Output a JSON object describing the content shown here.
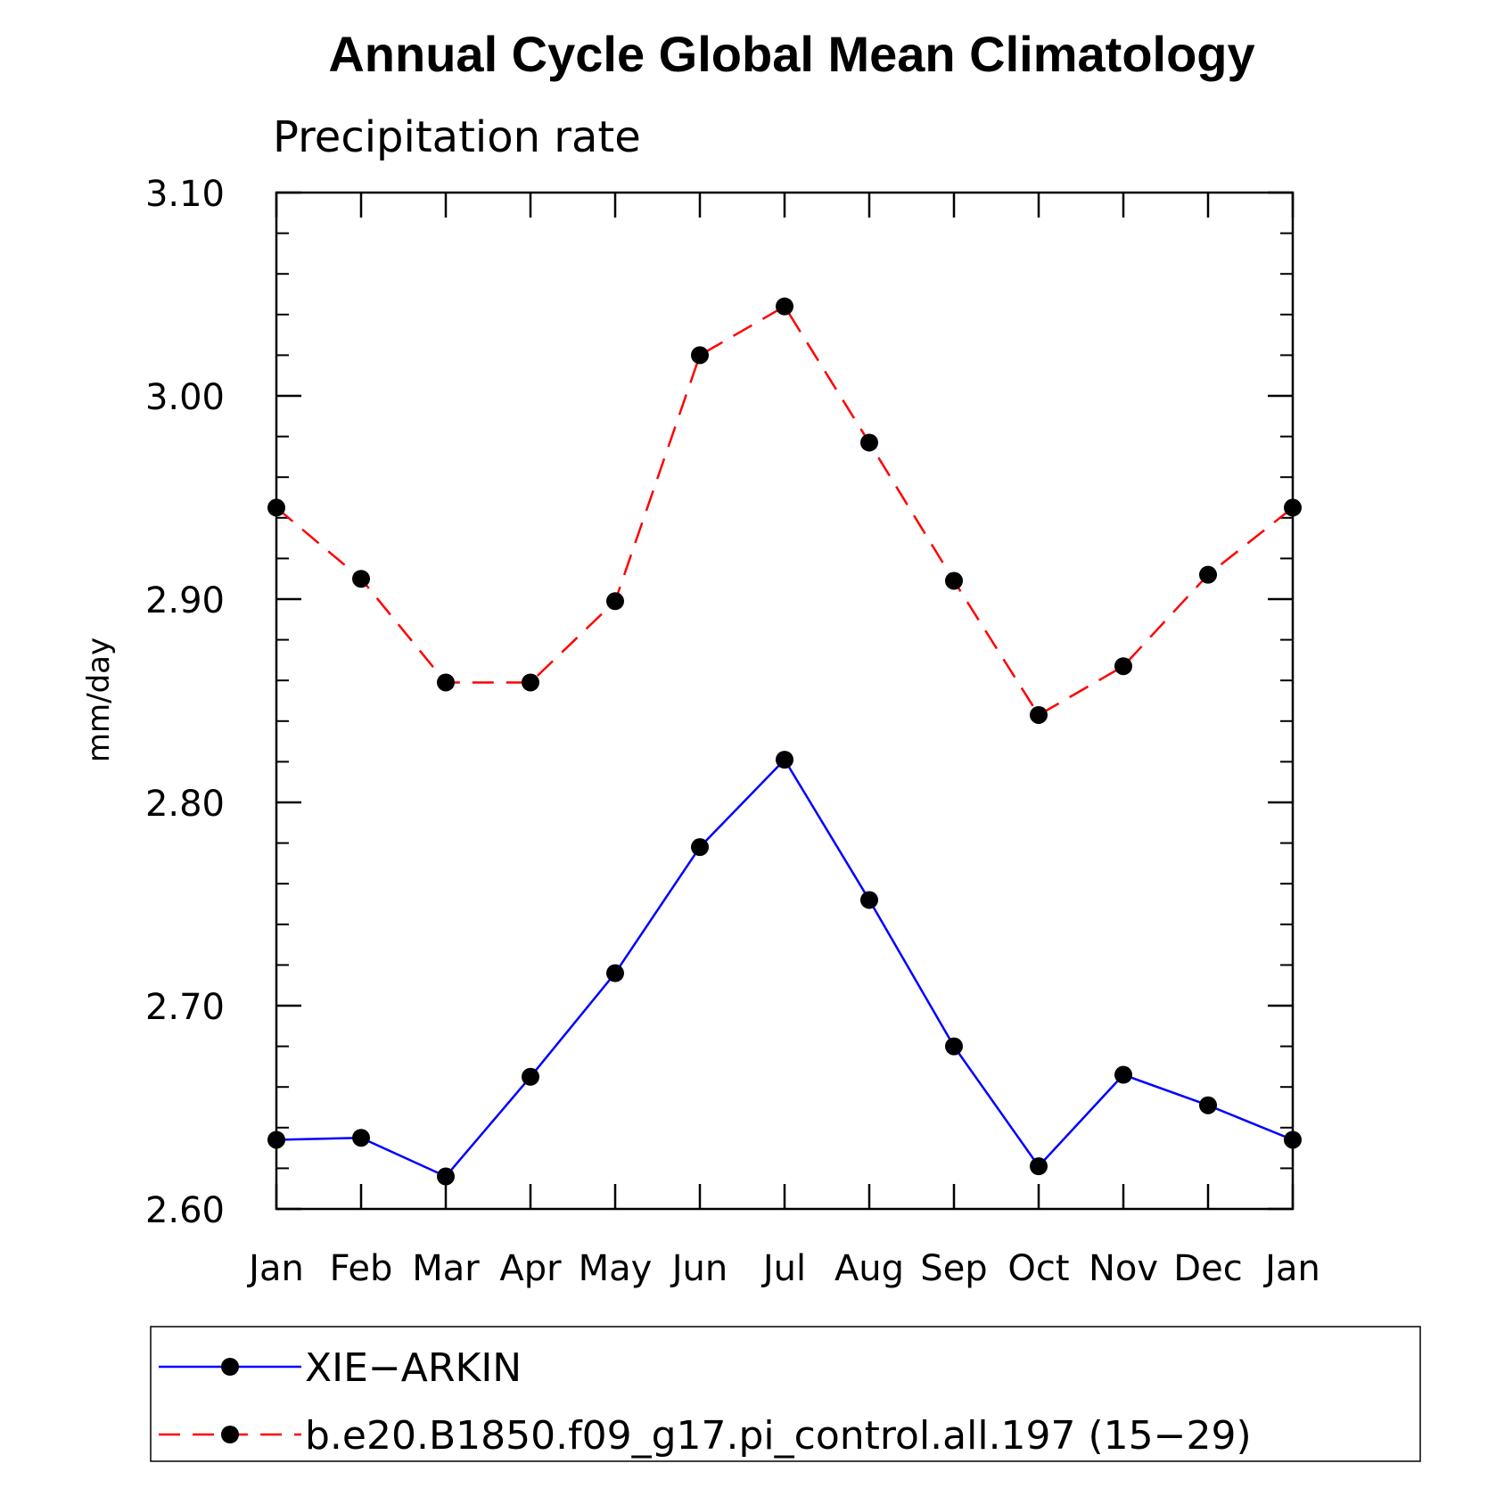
{
  "chart_data": {
    "type": "line",
    "title": "Annual Cycle Global Mean Climatology",
    "subtitle": "Precipitation rate",
    "ylabel": "mm/day",
    "xlabel": "",
    "categories": [
      "Jan",
      "Feb",
      "Mar",
      "Apr",
      "May",
      "Jun",
      "Jul",
      "Aug",
      "Sep",
      "Oct",
      "Nov",
      "Dec",
      "Jan"
    ],
    "ylim": [
      2.6,
      3.1
    ],
    "yticks": [
      "2.60",
      "2.70",
      "2.80",
      "2.90",
      "3.00",
      "3.10"
    ],
    "ytick_values": [
      2.6,
      2.7,
      2.8,
      2.9,
      3.0,
      3.1
    ],
    "grid": false,
    "legend_position": "bottom",
    "series": [
      {
        "name": "XIE−ARKIN",
        "color": "#0000ff",
        "style": "solid",
        "marker": "circle",
        "values": [
          2.634,
          2.635,
          2.616,
          2.665,
          2.716,
          2.778,
          2.821,
          2.752,
          2.68,
          2.621,
          2.666,
          2.651,
          2.634
        ]
      },
      {
        "name": "b.e20.B1850.f09_g17.pi_control.all.197 (15−29)",
        "color": "#ff0000",
        "style": "dashed",
        "marker": "circle",
        "values": [
          2.945,
          2.91,
          2.859,
          2.859,
          2.899,
          3.02,
          3.044,
          2.977,
          2.909,
          2.843,
          2.867,
          2.912,
          2.945
        ]
      }
    ]
  }
}
